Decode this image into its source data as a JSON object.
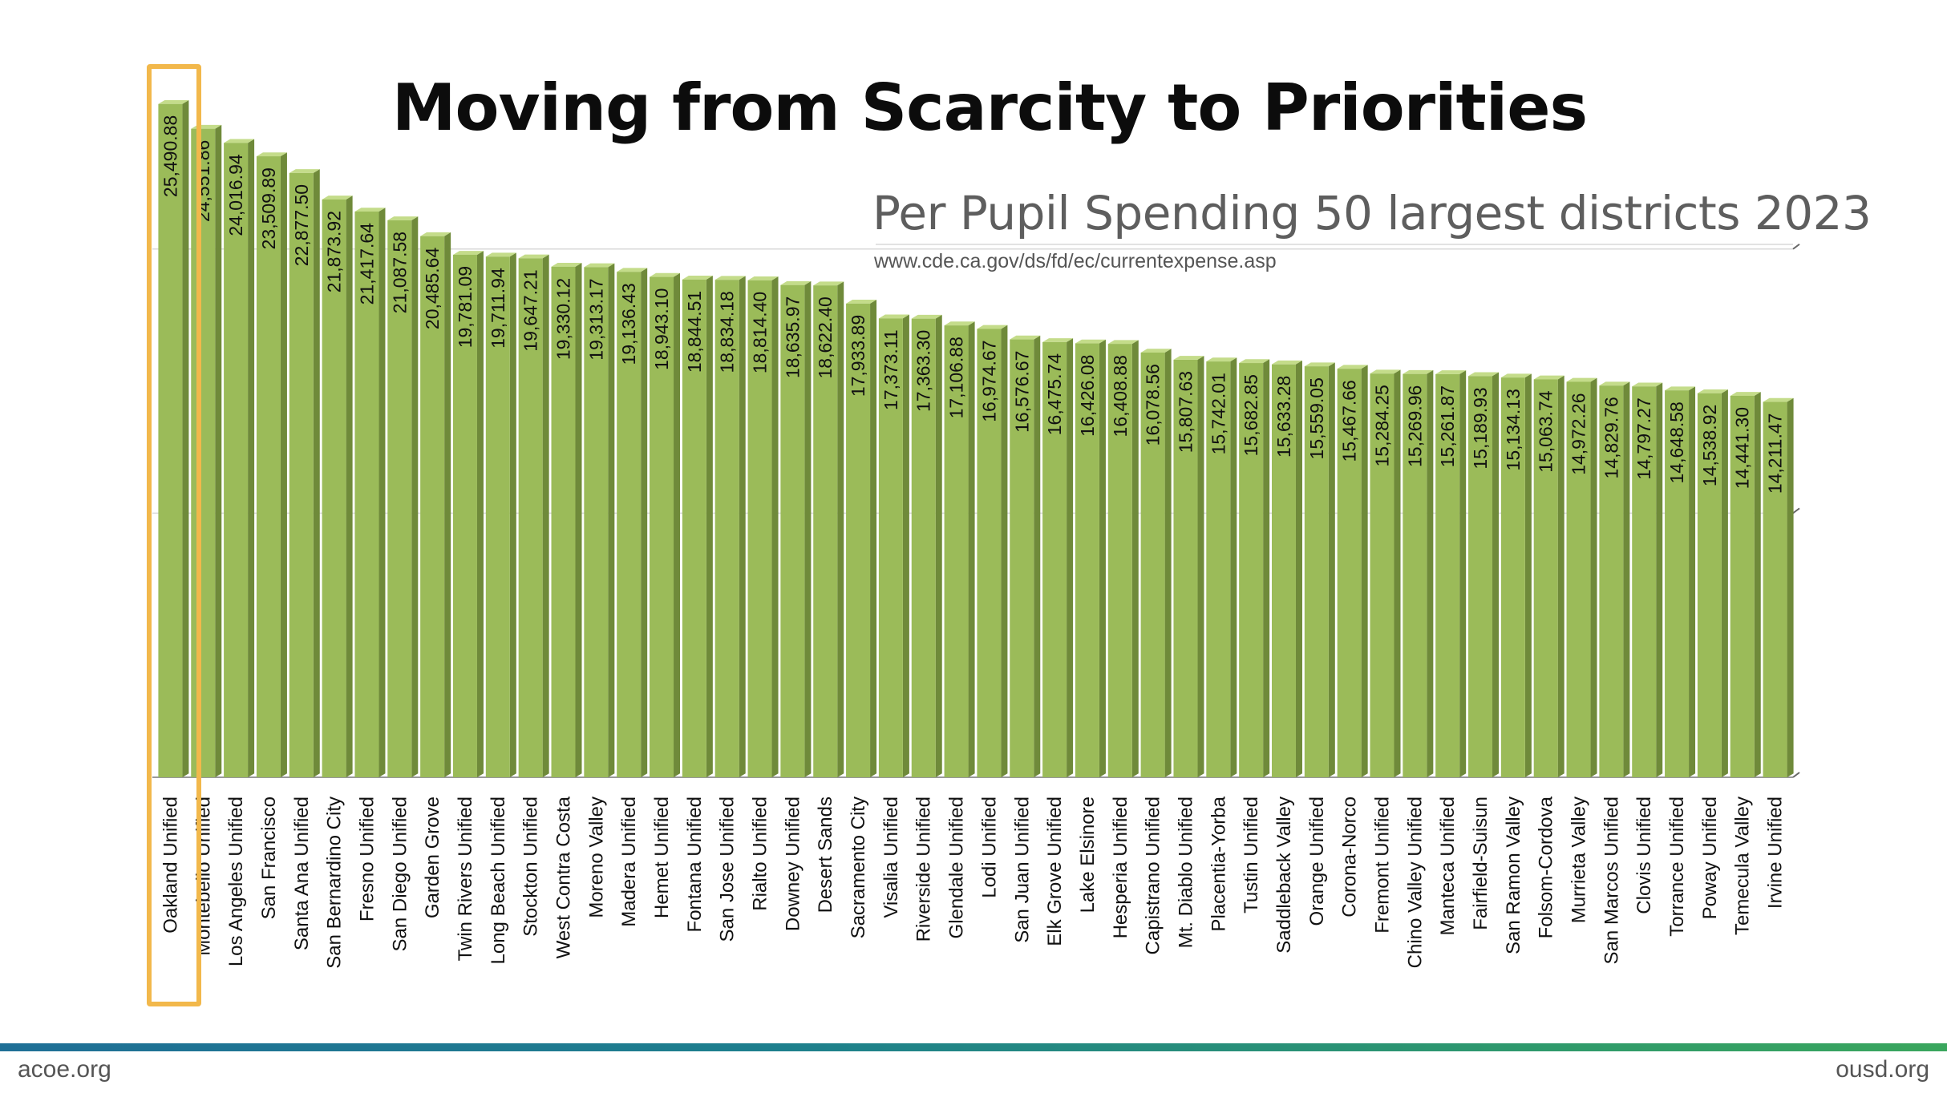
{
  "slide": {
    "title": "Moving from Scarcity to Priorities",
    "subtitle": "Per Pupil Spending 50 largest districts 2023",
    "source": "www.cde.ca.gov/ds/fd/ec/currentexpense.asp",
    "footer_left": "acoe.org",
    "footer_right": "ousd.org"
  },
  "colors": {
    "bar": "#9bbb59",
    "bar_side": "#6f8a3a",
    "bar_top": "#c4dc8a",
    "highlight": "#f2b84b",
    "gridline": "#d9d9d9"
  },
  "chart_data": {
    "type": "bar",
    "title": "",
    "xlabel": "",
    "ylabel": "",
    "ylim": [
      0,
      27000
    ],
    "grid": true,
    "legend": "none",
    "highlighted_category": "Oakland Unified",
    "categories": [
      "Oakland Unified",
      "Montebello Unified",
      "Los Angeles Unified",
      "San Francisco",
      "Santa Ana Unified",
      "San Bernardino City",
      "Fresno Unified",
      "San Diego Unified",
      "Garden Grove",
      "Twin Rivers Unified",
      "Long Beach Unified",
      "Stockton Unified",
      "West Contra Costa",
      "Moreno Valley",
      "Madera Unified",
      "Hemet Unified",
      "Fontana Unified",
      "San Jose Unified",
      "Rialto Unified",
      "Downey Unified",
      "Desert Sands",
      "Sacramento City",
      "Visalia Unified",
      "Riverside Unified",
      "Glendale Unified",
      "Lodi Unified",
      "San Juan Unified",
      "Elk Grove Unified",
      "Lake Elsinore",
      "Hesperia Unified",
      "Capistrano Unified",
      "Mt. Diablo Unified",
      "Placentia-Yorba",
      "Tustin Unified",
      "Saddleback Valley",
      "Orange Unified",
      "Corona-Norco",
      "Fremont Unified",
      "Chino Valley Unified",
      "Manteca Unified",
      "Fairfield-Suisun",
      "San Ramon Valley",
      "Folsom-Cordova",
      "Murrieta Valley",
      "San Marcos Unified",
      "Clovis Unified",
      "Torrance Unified",
      "Poway Unified",
      "Temecula Valley",
      "Irvine Unified"
    ],
    "values": [
      25490.88,
      24551.86,
      24016.94,
      23509.89,
      22877.5,
      21873.92,
      21417.64,
      21087.58,
      20485.64,
      19781.09,
      19711.94,
      19647.21,
      19330.12,
      19313.17,
      19136.43,
      18943.1,
      18844.51,
      18834.18,
      18814.4,
      18635.97,
      18622.4,
      17933.89,
      17373.11,
      17363.3,
      17106.88,
      16974.67,
      16576.67,
      16475.74,
      16426.08,
      16408.88,
      16078.56,
      15807.63,
      15742.01,
      15682.85,
      15633.28,
      15559.05,
      15467.66,
      15284.25,
      15269.96,
      15261.87,
      15189.93,
      15134.13,
      15063.74,
      14972.26,
      14829.76,
      14797.27,
      14648.58,
      14538.92,
      14441.3,
      14211.47
    ],
    "value_labels": [
      "25,490.88",
      "24,551.86",
      "24,016.94",
      "23,509.89",
      "22,877.50",
      "21,873.92",
      "21,417.64",
      "21,087.58",
      "20,485.64",
      "19,781.09",
      "19,711.94",
      "19,647.21",
      "19,330.12",
      "19,313.17",
      "19,136.43",
      "18,943.10",
      "18,844.51",
      "18,834.18",
      "18,814.40",
      "18,635.97",
      "18,622.40",
      "17,933.89",
      "17,373.11",
      "17,363.30",
      "17,106.88",
      "16,974.67",
      "16,576.67",
      "16,475.74",
      "16,426.08",
      "16,408.88",
      "16,078.56",
      "15,807.63",
      "15,742.01",
      "15,682.85",
      "15,633.28",
      "15,559.05",
      "15,467.66",
      "15,284.25",
      "15,269.96",
      "15,261.87",
      "15,189.93",
      "15,134.13",
      "15,063.74",
      "14,972.26",
      "14,829.76",
      "14,797.27",
      "14,648.58",
      "14,538.92",
      "14,441.30",
      "14,211.47"
    ]
  }
}
